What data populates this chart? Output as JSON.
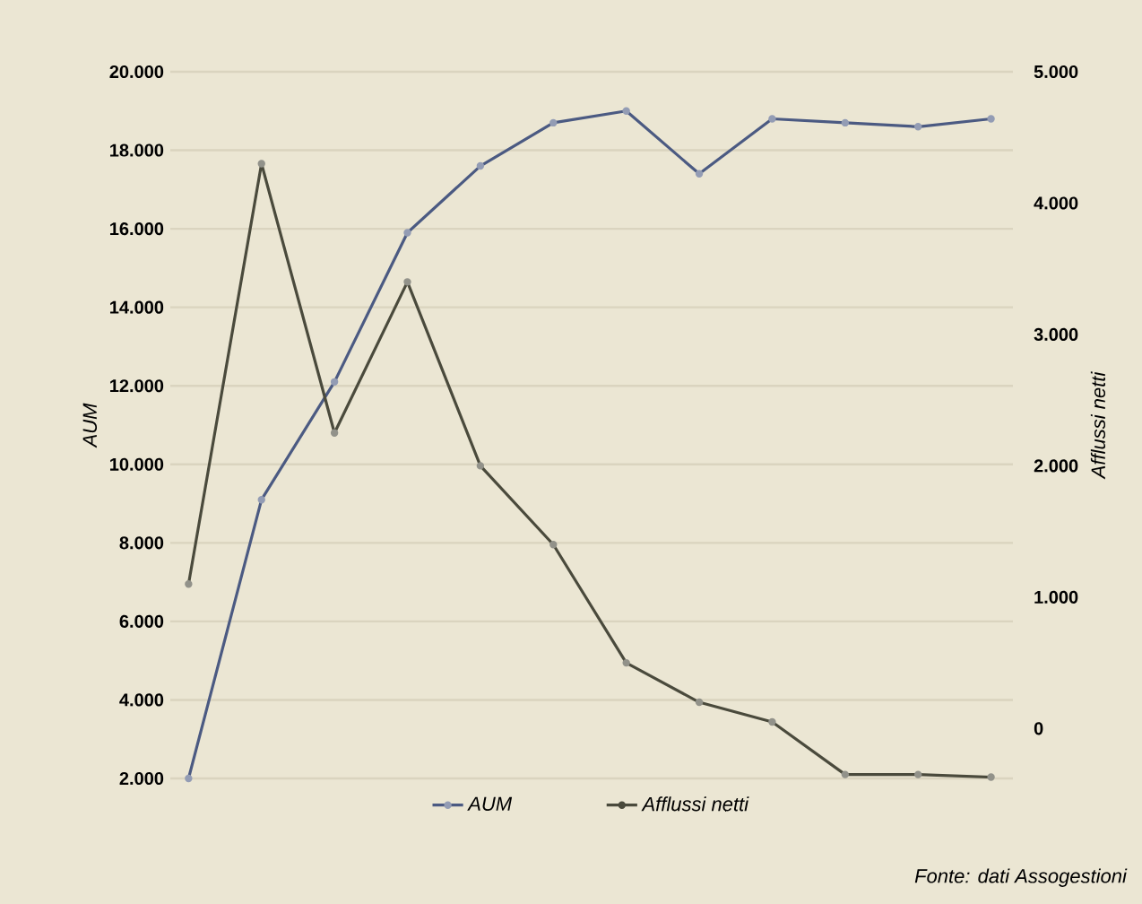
{
  "chart_data": {
    "type": "line",
    "categories": [
      null,
      null,
      null,
      null,
      null,
      null,
      null,
      null,
      null,
      null,
      null,
      null
    ],
    "series": [
      {
        "name": "AUM",
        "color": "#4b5a82",
        "axis": "y",
        "values": [
          2000,
          9100,
          12100,
          15900,
          17600,
          18700,
          19000,
          17400,
          18800,
          18700,
          18600,
          18800
        ]
      },
      {
        "name": "Afflussi netti",
        "color": "#4a4a3c",
        "axis": "y2",
        "values": [
          1100,
          4300,
          2250,
          3400,
          2000,
          1400,
          500,
          200,
          50,
          -350,
          -350,
          -370
        ]
      }
    ],
    "ylabel": "AUM",
    "y2label": "Afflussi netti",
    "ylim": [
      2000,
      20000
    ],
    "yticks": [
      {
        "value": 2000,
        "label": "2.000"
      },
      {
        "value": 4000,
        "label": "4.000"
      },
      {
        "value": 6000,
        "label": "6.000"
      },
      {
        "value": 8000,
        "label": "8.000"
      },
      {
        "value": 10000,
        "label": "10.000"
      },
      {
        "value": 12000,
        "label": "12.000"
      },
      {
        "value": 14000,
        "label": "14.000"
      },
      {
        "value": 16000,
        "label": "16.000"
      },
      {
        "value": 18000,
        "label": "18.000"
      },
      {
        "value": 20000,
        "label": "20.000"
      }
    ],
    "y2lim": [
      -380,
      5000
    ],
    "y2ticks": [
      0,
      {
        "value": 1000,
        "label": "1.000"
      },
      {
        "value": 2000,
        "label": "2.000"
      },
      {
        "value": 3000,
        "label": "3.000"
      },
      {
        "value": 4000,
        "label": "4.000"
      },
      {
        "value": 5000,
        "label": "5.000"
      }
    ],
    "annotations": [
      "Fonte: dati Assogestioni"
    ],
    "grid": "y",
    "legend": "bottom",
    "marker": "circle",
    "line_style": "solid"
  }
}
